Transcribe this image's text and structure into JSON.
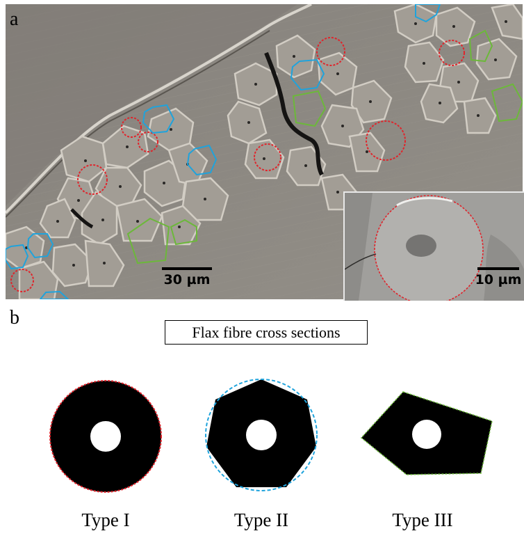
{
  "figure": {
    "panel_a": {
      "letter": "a",
      "scale_bar_main": "30 µm",
      "scale_bar_inset": "10 µm"
    },
    "panel_b": {
      "letter": "b",
      "title": "Flax fibre cross sections",
      "shapes": [
        {
          "label": "Type I",
          "outline_color": "#e0242b",
          "shape": "circle"
        },
        {
          "label": "Type II",
          "outline_color": "#1fa3dc",
          "shape": "heptagon"
        },
        {
          "label": "Type III",
          "outline_color": "#6cb83a",
          "shape": "pentagon"
        }
      ]
    },
    "colors": {
      "type1": "#e0242b",
      "type2": "#1fa3dc",
      "type3": "#6cb83a"
    }
  }
}
